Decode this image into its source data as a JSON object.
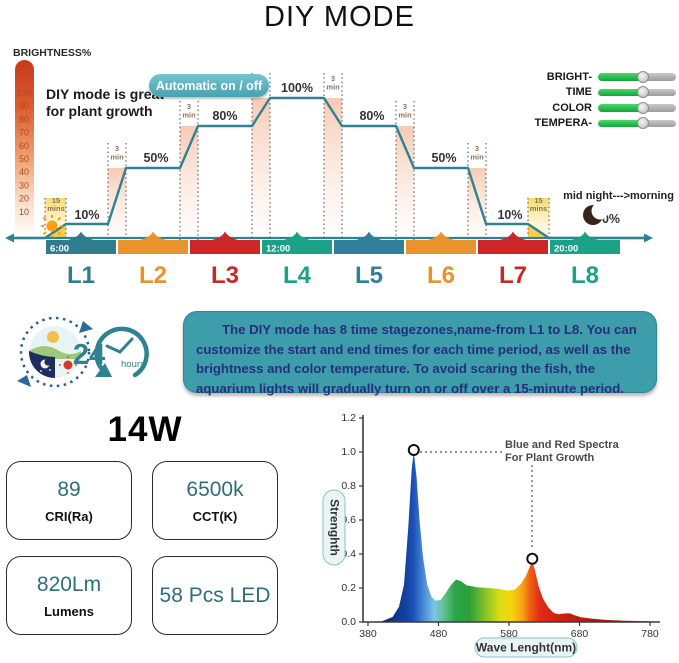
{
  "title": "DIY MODE",
  "colors": {
    "accent_teal": "#2e8291",
    "badge_teal": "#47a2b1",
    "description_box": "#3d9daa",
    "description_text": "#262f7e",
    "zone_palette": [
      "#2e7d8e",
      "#e8932b",
      "#cc2628",
      "#1aa186",
      "#31809b",
      "#e8932b",
      "#cc2628",
      "#1aa186"
    ],
    "slider_green": "#1fa83e",
    "spec_value_teal": "#2d6f79"
  },
  "brightness_axis": {
    "label": "BRIGHTNESS%",
    "ticks": [
      "100",
      "90",
      "80",
      "70",
      "60",
      "50",
      "40",
      "30",
      "20",
      "10"
    ]
  },
  "schedule": {
    "tagline_line1": "DIY mode is great",
    "tagline_line2": "for plant growth",
    "badge": "Automatic on / off",
    "midnight_note": "mid night--->morning",
    "time_labels": [
      "6:00",
      "12:00",
      "20:00"
    ],
    "zone_labels": [
      "L1",
      "L2",
      "L3",
      "L4",
      "L5",
      "L6",
      "L7",
      "L8"
    ],
    "level_labels": [
      "10%",
      "50%",
      "80%",
      "100%",
      "80%",
      "50%",
      "10%",
      "0%"
    ],
    "ramp3_value": "3",
    "ramp3_unit": "min",
    "ramp15_value": "15",
    "ramp15_unit": "mins"
  },
  "sliders": {
    "labels": [
      "BRIGHT-",
      "TIME",
      "COLOR",
      "TEMPERA-"
    ]
  },
  "cycle_icon": {
    "value": "24",
    "unit": "hours"
  },
  "description": "The DIY mode has 8 time stagezones,name-from L1 to L8. You can customize the start and end times for each time period, as well as the brightness and color temperature. To avoid scaring the fish, the aquarium lights will gradually turn on or off over a 15-minute period.",
  "specs": {
    "wattage": "14W",
    "items": [
      {
        "value": "89",
        "label": "CRI(Ra)"
      },
      {
        "value": "6500k",
        "label": "CCT(K)"
      },
      {
        "value": "820Lm",
        "label": "Lumens"
      },
      {
        "value": "58 Pcs LED",
        "label": ""
      }
    ]
  },
  "chart_data": [
    {
      "type": "line",
      "title": "DIY mode 24h brightness schedule",
      "zones": [
        "L1",
        "L2",
        "L3",
        "L4",
        "L5",
        "L6",
        "L7",
        "L8"
      ],
      "brightness_percent": [
        10,
        50,
        80,
        100,
        80,
        50,
        10,
        0
      ],
      "zone_start_times": [
        "6:00",
        "12:00",
        "20:00"
      ],
      "transition_minutes": {
        "power_on_off": 15,
        "between_zones": 3
      },
      "ylabel": "BRIGHTNESS%",
      "yticks": [
        100,
        90,
        80,
        70,
        60,
        50,
        40,
        30,
        20,
        10
      ]
    },
    {
      "type": "area",
      "xlabel": "Wave Lenght(nm)",
      "ylabel": "Strenghth",
      "xticks": [
        "380",
        "480",
        "580",
        "680",
        "780"
      ],
      "yticks": [
        "0.0",
        "0.2",
        "0.4",
        "0.6",
        "0.8",
        "1.0",
        "1.2"
      ],
      "xlim": [
        380,
        780
      ],
      "ylim": [
        0,
        1.2
      ],
      "annotation_line1": "Blue and Red Spectra",
      "annotation_line2": "For Plant Growth",
      "peaks": [
        {
          "nm": 445,
          "strength": 1.0
        },
        {
          "nm": 613,
          "strength": 0.36
        }
      ],
      "points": [
        [
          400,
          0.005
        ],
        [
          415,
          0.03
        ],
        [
          424,
          0.09
        ],
        [
          431,
          0.22
        ],
        [
          437,
          0.55
        ],
        [
          442,
          0.9
        ],
        [
          445,
          1.0
        ],
        [
          449,
          0.85
        ],
        [
          453,
          0.6
        ],
        [
          458,
          0.38
        ],
        [
          464,
          0.22
        ],
        [
          470,
          0.15
        ],
        [
          476,
          0.125
        ],
        [
          483,
          0.13
        ],
        [
          490,
          0.17
        ],
        [
          498,
          0.22
        ],
        [
          505,
          0.25
        ],
        [
          512,
          0.24
        ],
        [
          520,
          0.215
        ],
        [
          535,
          0.205
        ],
        [
          550,
          0.2
        ],
        [
          565,
          0.195
        ],
        [
          578,
          0.185
        ],
        [
          588,
          0.19
        ],
        [
          596,
          0.22
        ],
        [
          604,
          0.27
        ],
        [
          609,
          0.32
        ],
        [
          613,
          0.36
        ],
        [
          617,
          0.3
        ],
        [
          622,
          0.21
        ],
        [
          628,
          0.14
        ],
        [
          635,
          0.09
        ],
        [
          643,
          0.055
        ],
        [
          650,
          0.045
        ],
        [
          658,
          0.05
        ],
        [
          666,
          0.052
        ],
        [
          673,
          0.04
        ],
        [
          682,
          0.028
        ],
        [
          700,
          0.018
        ],
        [
          720,
          0.012
        ],
        [
          745,
          0.007
        ],
        [
          780,
          0.004
        ]
      ]
    }
  ]
}
